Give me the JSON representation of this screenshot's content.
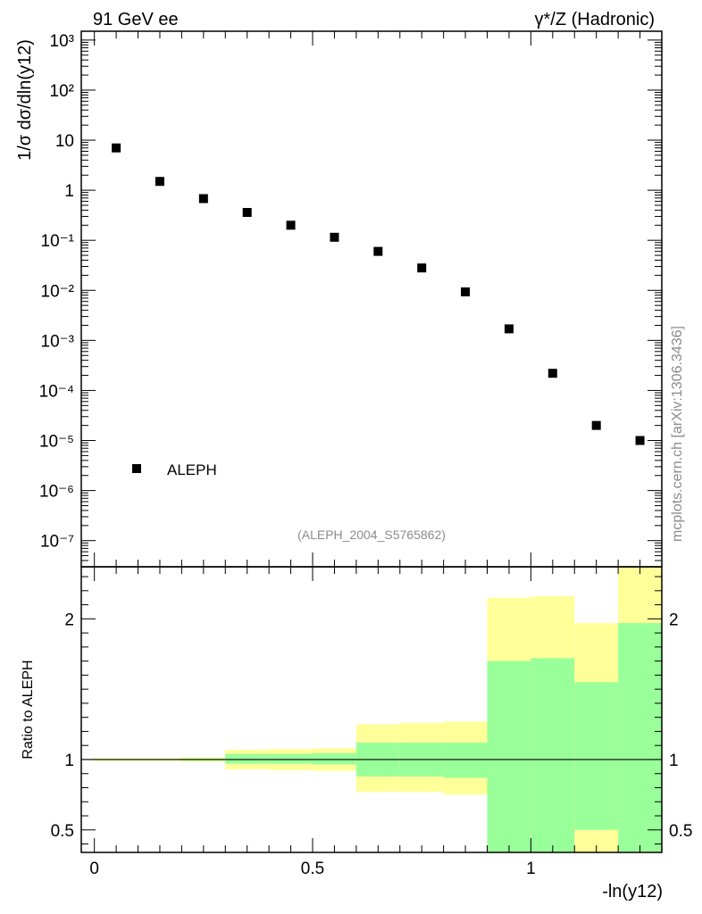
{
  "header": {
    "left": "91 GeV ee",
    "right": "γ*/Z (Hadronic)"
  },
  "side_label": "mcplots.cern.ch [arXiv:1306.3436]",
  "analysis_tag": "(ALEPH_2004_S5765862)",
  "colors": {
    "marker": "#000000",
    "band_outer": "#ffff99",
    "band_inner": "#99ff99",
    "ref_line": "#000000",
    "watermark": "#8c8c8c"
  },
  "chart_data": [
    {
      "type": "scatter",
      "panel": "main",
      "ylabel": "1/σ  dσ/dln(y12)",
      "yscale": "log",
      "xlim": [
        -0.03,
        1.3
      ],
      "ylim": [
        3e-08,
        1500
      ],
      "legend": {
        "position": "bottom-left",
        "entries": [
          "ALEPH"
        ]
      },
      "y_tick_labels": [
        "10⁻⁷",
        "10⁻⁶",
        "10⁻⁵",
        "10⁻⁴",
        "10⁻³",
        "10⁻²",
        "10⁻¹",
        "1",
        "10",
        "10²",
        "10³"
      ],
      "series": [
        {
          "name": "ALEPH",
          "x": [
            0.05,
            0.15,
            0.25,
            0.35,
            0.45,
            0.55,
            0.65,
            0.75,
            0.85,
            0.95,
            1.05,
            1.15,
            1.25
          ],
          "y": [
            7.0,
            1.5,
            0.68,
            0.36,
            0.2,
            0.115,
            0.06,
            0.028,
            0.0093,
            0.0017,
            0.00022,
            2e-05,
            1e-05
          ]
        }
      ]
    },
    {
      "type": "area",
      "panel": "ratio",
      "ylabel": "Ratio to ALEPH",
      "xlabel": "-ln(y12)",
      "yscale": "linear",
      "xlim": [
        -0.03,
        1.3
      ],
      "ylim": [
        0.34,
        2.37
      ],
      "x_tick_labels": [
        "0",
        "0.5",
        "1"
      ],
      "y_tick_labels": [
        "0.5",
        "1",
        "2"
      ],
      "reference": 1,
      "bins": [
        {
          "lo": 0.0,
          "hi": 0.1,
          "inner": [
            0.995,
            1.005
          ],
          "outer": [
            0.99,
            1.01
          ]
        },
        {
          "lo": 0.1,
          "hi": 0.2,
          "inner": [
            0.995,
            1.005
          ],
          "outer": [
            0.99,
            1.01
          ]
        },
        {
          "lo": 0.2,
          "hi": 0.3,
          "inner": [
            0.993,
            1.007
          ],
          "outer": [
            0.985,
            1.015
          ]
        },
        {
          "lo": 0.3,
          "hi": 0.4,
          "inner": [
            0.97,
            1.04
          ],
          "outer": [
            0.93,
            1.07
          ]
        },
        {
          "lo": 0.4,
          "hi": 0.5,
          "inner": [
            0.97,
            1.04
          ],
          "outer": [
            0.925,
            1.075
          ]
        },
        {
          "lo": 0.5,
          "hi": 0.6,
          "inner": [
            0.965,
            1.045
          ],
          "outer": [
            0.92,
            1.08
          ]
        },
        {
          "lo": 0.6,
          "hi": 0.7,
          "inner": [
            0.88,
            1.12
          ],
          "outer": [
            0.77,
            1.25
          ]
        },
        {
          "lo": 0.7,
          "hi": 0.8,
          "inner": [
            0.88,
            1.12
          ],
          "outer": [
            0.77,
            1.26
          ]
        },
        {
          "lo": 0.8,
          "hi": 0.9,
          "inner": [
            0.87,
            1.12
          ],
          "outer": [
            0.75,
            1.27
          ]
        },
        {
          "lo": 0.9,
          "hi": 1.0,
          "inner": [
            0.3,
            1.7
          ],
          "outer": [
            0.3,
            2.15
          ]
        },
        {
          "lo": 1.0,
          "hi": 1.1,
          "inner": [
            0.3,
            1.72
          ],
          "outer": [
            0.3,
            2.16
          ]
        },
        {
          "lo": 1.1,
          "hi": 1.2,
          "inner": [
            0.5,
            1.55
          ],
          "outer": [
            0.3,
            1.97
          ]
        },
        {
          "lo": 1.2,
          "hi": 1.3,
          "inner": [
            0.3,
            1.97
          ],
          "outer": [
            0.3,
            2.5
          ]
        }
      ]
    }
  ]
}
